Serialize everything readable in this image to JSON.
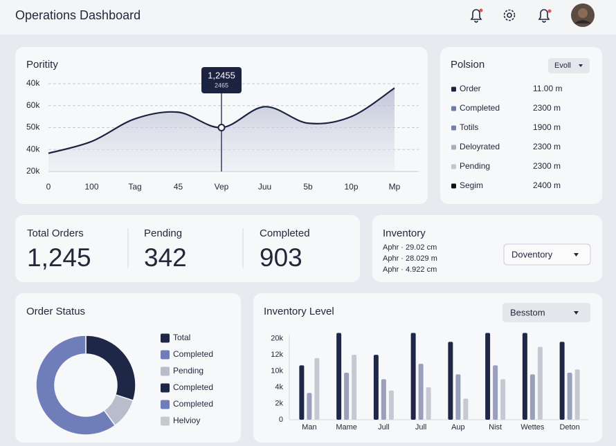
{
  "header": {
    "title": "Operations Dashboard"
  },
  "chart_data": [
    {
      "type": "line",
      "title": "Poritity",
      "categories": [
        "0",
        "100",
        "Tag",
        "45",
        "Vep",
        "Juu",
        "5b",
        "10p",
        "Mp"
      ],
      "values": [
        0.83,
        1.37,
        2.4,
        2.7,
        2.0,
        2.95,
        2.2,
        2.5,
        3.8
      ],
      "color": "#1c2340",
      "ylim": [
        0,
        4
      ],
      "yticks": [
        {
          "value": 0,
          "label": "20k"
        },
        {
          "value": 1,
          "label": "40k"
        },
        {
          "value": 2,
          "label": "50k"
        },
        {
          "value": 3,
          "label": "60k"
        },
        {
          "value": 4,
          "label": "40k"
        }
      ],
      "grid": true,
      "annotation": {
        "title": "1,2455",
        "subtitle": "2465"
      }
    },
    {
      "type": "pie",
      "title": "Order Status",
      "categories": [
        "Total",
        "Completed",
        "Pending",
        "Completed",
        "Completed",
        "Helvioy"
      ],
      "values": [
        30,
        0,
        10,
        0,
        60,
        0
      ],
      "colors": [
        "#1f2747",
        "#6f7db8",
        "#b8bccb",
        "#1f2747",
        "#6f7db8",
        "#c7c9d1"
      ]
    },
    {
      "type": "bar",
      "title": "Inventory Level",
      "dropdown": "Besstom",
      "categories": [
        "Man",
        "Mame",
        "Jull",
        "Jull",
        "Aup",
        "Nist",
        "Wettes",
        "Deton"
      ],
      "series": [
        {
          "color": "#1f2747",
          "values": [
            3.35,
            5.35,
            4.0,
            5.35,
            4.8,
            5.35,
            5.35,
            4.8
          ]
        },
        {
          "color": "#9aa0bb",
          "values": [
            1.65,
            2.9,
            2.5,
            3.45,
            2.8,
            3.35,
            2.8,
            2.9
          ]
        },
        {
          "color": "#c6c8d2",
          "values": [
            3.8,
            4.0,
            1.8,
            2.0,
            1.3,
            2.5,
            4.5,
            3.1
          ]
        }
      ],
      "ylim": [
        0,
        5.5
      ],
      "yticks": [
        {
          "value": 0,
          "label": "0"
        },
        {
          "value": 1,
          "label": "2k"
        },
        {
          "value": 2,
          "label": "4k"
        },
        {
          "value": 3,
          "label": "10k"
        },
        {
          "value": 4,
          "label": "12k"
        },
        {
          "value": 5,
          "label": "20k"
        }
      ],
      "grid": false
    }
  ],
  "status_panel": {
    "title": "Polsion",
    "dropdown": "Evoll",
    "items": [
      {
        "name": "Order",
        "value": "11.00 m",
        "color": "#1c2340"
      },
      {
        "name": "Completed",
        "value": "2300 m",
        "color": "#6f7ba3"
      },
      {
        "name": "Totils",
        "value": "1900 m",
        "color": "#7381aa"
      },
      {
        "name": "Deloyrated",
        "value": "2300 m",
        "color": "#a9aebf"
      },
      {
        "name": "Pending",
        "value": "2300 m",
        "color": "#c3c6d1"
      },
      {
        "name": "Segim",
        "value": "2400 m",
        "color": "#111111"
      }
    ]
  },
  "kpis": [
    {
      "label": "Total Orders",
      "value": "1,245"
    },
    {
      "label": "Pending",
      "value": "342"
    },
    {
      "label": "Completed",
      "value": "903"
    }
  ],
  "inventory": {
    "title": "Inventory",
    "lines": [
      "Aphr · 29.02 cm",
      "Aphr · 28.029 m",
      "Aphr · 4.922 cm"
    ],
    "dropdown": "Doventory"
  }
}
